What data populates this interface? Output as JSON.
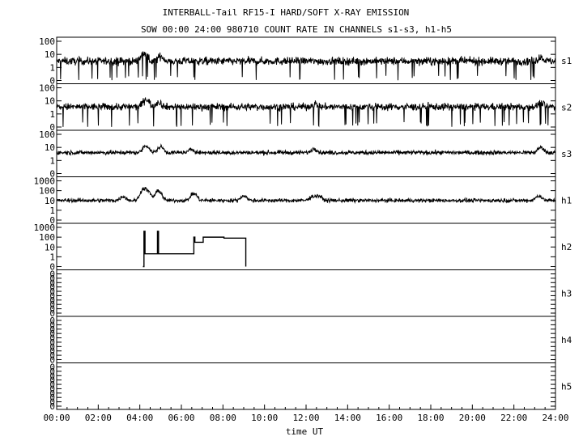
{
  "title_line1": "INTERBALL-Tail RF15-I HARD/SOFT X-RAY EMISSION",
  "title_line2": "SOW 00:00 24:00 980710  COUNT RATE IN CHANNELS s1-s3, h1-h5",
  "chart_data": {
    "type": "line",
    "xlabel": "time UT",
    "x_range": [
      "00:00",
      "24:00"
    ],
    "x_ticks": [
      "00:00",
      "02:00",
      "04:00",
      "06:00",
      "08:00",
      "10:00",
      "12:00",
      "14:00",
      "16:00",
      "18:00",
      "20:00",
      "22:00",
      "24:00"
    ],
    "y_scale": "log",
    "panels": [
      {
        "name": "s1",
        "y_ticks": [
          "100",
          "10",
          "1",
          "0"
        ],
        "baseline": 3,
        "noise": 0.28,
        "dropouts": true,
        "features": [
          {
            "t": 4.2,
            "v": 12
          },
          {
            "t": 5.0,
            "v": 7
          },
          {
            "t": 23.3,
            "v": 6
          }
        ]
      },
      {
        "name": "s2",
        "y_ticks": [
          "100",
          "10",
          "1",
          "0"
        ],
        "baseline": 3.5,
        "noise": 0.26,
        "dropouts": true,
        "features": [
          {
            "t": 4.3,
            "v": 14
          },
          {
            "t": 4.9,
            "v": 8
          },
          {
            "t": 12.4,
            "v": 6
          },
          {
            "t": 23.3,
            "v": 7
          }
        ]
      },
      {
        "name": "s3",
        "y_ticks": [
          "100",
          "10",
          "1",
          "0"
        ],
        "baseline": 4,
        "noise": 0.15,
        "dropouts": false,
        "features": [
          {
            "t": 4.3,
            "v": 14
          },
          {
            "t": 5.0,
            "v": 11
          },
          {
            "t": 6.5,
            "v": 7
          },
          {
            "t": 12.4,
            "v": 8
          },
          {
            "t": 23.3,
            "v": 10
          }
        ]
      },
      {
        "name": "h1",
        "y_ticks": [
          "1000",
          "100",
          "10",
          "1",
          "0"
        ],
        "baseline": 10,
        "noise": 0.18,
        "dropouts": false,
        "features": [
          {
            "t": 3.2,
            "v": 25
          },
          {
            "t": 4.2,
            "v": 150
          },
          {
            "t": 4.4,
            "v": 60
          },
          {
            "t": 4.9,
            "v": 90
          },
          {
            "t": 6.6,
            "v": 50
          },
          {
            "t": 9.0,
            "v": 30
          },
          {
            "t": 12.3,
            "v": 25
          },
          {
            "t": 12.6,
            "v": 30
          },
          {
            "t": 23.2,
            "v": 30
          }
        ]
      },
      {
        "name": "h2",
        "y_ticks": [
          "1000",
          "100",
          "10",
          "1",
          "0"
        ],
        "step": [
          {
            "t": 4.15,
            "v": 0
          },
          {
            "t": 4.2,
            "v": 400
          },
          {
            "t": 4.25,
            "v": 2
          },
          {
            "t": 4.8,
            "v": 2
          },
          {
            "t": 4.85,
            "v": 400
          },
          {
            "t": 4.9,
            "v": 2
          },
          {
            "t": 6.55,
            "v": 2
          },
          {
            "t": 6.6,
            "v": 100
          },
          {
            "t": 6.65,
            "v": 30
          },
          {
            "t": 6.7,
            "v": 30
          },
          {
            "t": 7.0,
            "v": 30
          },
          {
            "t": 7.05,
            "v": 100
          },
          {
            "t": 8.0,
            "v": 100
          },
          {
            "t": 8.05,
            "v": 80
          },
          {
            "t": 9.05,
            "v": 80
          },
          {
            "t": 9.1,
            "v": 0
          }
        ]
      },
      {
        "name": "h3",
        "y_ticks": [
          "0",
          "0",
          "0",
          "0",
          "0",
          "0",
          "0",
          "0",
          "0",
          "0"
        ],
        "empty": true
      },
      {
        "name": "h4",
        "y_ticks": [
          "0",
          "0",
          "0",
          "0",
          "0",
          "0",
          "0",
          "0",
          "0",
          "0"
        ],
        "empty": true
      },
      {
        "name": "h5",
        "y_ticks": [
          "0",
          "0",
          "0",
          "0",
          "0",
          "0",
          "0",
          "0",
          "0",
          "0"
        ],
        "empty": true
      }
    ]
  }
}
